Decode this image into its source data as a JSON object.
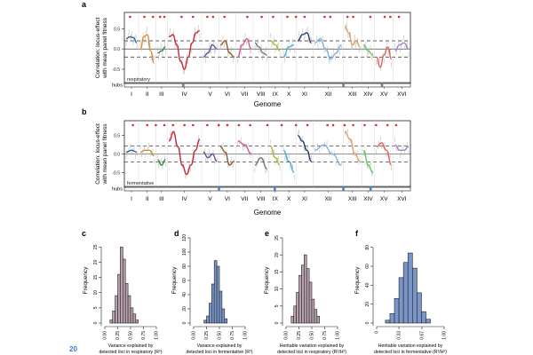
{
  "page_number": "20",
  "genome_panels": [
    {
      "letter": "a",
      "ylabel_lines": [
        "Correlation: locus-effect",
        "with mean panel fitness"
      ],
      "y_ticks": [
        "0.5",
        "0.0",
        "-0.5"
      ],
      "y_range": [
        -0.85,
        0.9
      ],
      "dashed_levels": [
        0.2,
        -0.2
      ],
      "condition": "respiratory",
      "hubs_label": "hubs",
      "xlabel": "Genome",
      "chromosomes": [
        "I",
        "II",
        "III",
        "IV",
        "V",
        "VI",
        "VII",
        "VIII",
        "IX",
        "X",
        "XI",
        "XII",
        "XIII",
        "XIV",
        "XV",
        "XVI"
      ],
      "chromosome_spans": [
        [
          0,
          0.05
        ],
        [
          0.05,
          0.11
        ],
        [
          0.11,
          0.15
        ],
        [
          0.15,
          0.27
        ],
        [
          0.27,
          0.33
        ],
        [
          0.33,
          0.39
        ],
        [
          0.39,
          0.45
        ],
        [
          0.45,
          0.505
        ],
        [
          0.505,
          0.55
        ],
        [
          0.55,
          0.6
        ],
        [
          0.6,
          0.66
        ],
        [
          0.66,
          0.765
        ],
        [
          0.765,
          0.83
        ],
        [
          0.83,
          0.875
        ],
        [
          0.875,
          0.94
        ],
        [
          0.94,
          1.0
        ]
      ],
      "series_colors": [
        "#2b5f9e",
        "#d98c2a",
        "#2e8b3e",
        "#c8282e",
        "#6a4aa0",
        "#8b5a2b",
        "#d4569a",
        "#777777",
        "#b5b52a",
        "#3fb5c8",
        "#1f3f66",
        "#7fb3e0",
        "#e0a060",
        "#5ac85a",
        "#e06060",
        "#a080c8"
      ],
      "profile": [
        [
          0.25,
          0.3,
          0.28,
          0.15
        ],
        [
          0.0,
          0.3,
          0.35,
          -0.05,
          -0.35
        ],
        [
          -0.1,
          -0.05,
          0.05
        ],
        [
          0.3,
          0.35,
          0.1,
          -0.3,
          -0.5,
          -0.2,
          0.15,
          0.4,
          0.45
        ],
        [
          -0.2,
          -0.1,
          0.1,
          0.0
        ],
        [
          0.1,
          0.2,
          -0.1,
          -0.2
        ],
        [
          -0.2,
          0.1,
          0.25,
          0.0
        ],
        [
          0.15,
          0.05,
          -0.1,
          -0.15
        ],
        [
          0.2,
          0.1,
          -0.05
        ],
        [
          -0.2,
          0.05,
          0.1
        ],
        [
          0.2,
          0.35,
          0.4,
          0.15
        ],
        [
          0.15,
          0.25,
          0.0,
          -0.25,
          -0.1,
          0.1
        ],
        [
          0.55,
          0.4,
          0.1,
          0.2,
          0.05
        ],
        [
          0.1,
          -0.05,
          -0.15
        ],
        [
          -0.2,
          -0.45,
          -0.15,
          0.05,
          -0.25
        ],
        [
          -0.05,
          0.1,
          0.15,
          0.0
        ]
      ],
      "qtl_marks": [
        0.02,
        0.07,
        0.1,
        0.125,
        0.14,
        0.2,
        0.24,
        0.29,
        0.31,
        0.35,
        0.43,
        0.48,
        0.52,
        0.57,
        0.6,
        0.63,
        0.7,
        0.72,
        0.78,
        0.8,
        0.86,
        0.91,
        0.93,
        0.96
      ],
      "hub_positions": [
        0.205,
        0.765,
        0.9
      ]
    },
    {
      "letter": "b",
      "ylabel_lines": [
        "Correlation: locus-effect",
        "with mean panel fitness"
      ],
      "y_ticks": [
        "0.5",
        "0.0",
        "-0.5"
      ],
      "y_range": [
        -0.9,
        0.9
      ],
      "dashed_levels": [
        0.22,
        -0.22
      ],
      "condition": "fermentative",
      "hubs_label": "hubs",
      "xlabel": "Genome",
      "chromosomes": [
        "I",
        "II",
        "III",
        "IV",
        "V",
        "VI",
        "VII",
        "VIII",
        "IX",
        "X",
        "XI",
        "XII",
        "XIII",
        "XIV",
        "XV",
        "XVI"
      ],
      "chromosome_spans": [
        [
          0,
          0.05
        ],
        [
          0.05,
          0.11
        ],
        [
          0.11,
          0.15
        ],
        [
          0.15,
          0.27
        ],
        [
          0.27,
          0.33
        ],
        [
          0.33,
          0.39
        ],
        [
          0.39,
          0.45
        ],
        [
          0.45,
          0.505
        ],
        [
          0.505,
          0.55
        ],
        [
          0.55,
          0.6
        ],
        [
          0.6,
          0.66
        ],
        [
          0.66,
          0.765
        ],
        [
          0.765,
          0.83
        ],
        [
          0.83,
          0.875
        ],
        [
          0.875,
          0.94
        ],
        [
          0.94,
          1.0
        ]
      ],
      "series_colors": [
        "#2b5f9e",
        "#d98c2a",
        "#2e8b3e",
        "#c8282e",
        "#6a4aa0",
        "#8b5a2b",
        "#d4569a",
        "#777777",
        "#b5b52a",
        "#3fb5c8",
        "#1f3f66",
        "#7fb3e0",
        "#e0a060",
        "#5ac85a",
        "#e06060",
        "#a080c8"
      ],
      "profile": [
        [
          0.05,
          0.1,
          0.05
        ],
        [
          0.05,
          0.1,
          0.1,
          -0.05
        ],
        [
          -0.15,
          -0.3,
          -0.15
        ],
        [
          0.35,
          0.6,
          0.2,
          -0.3,
          -0.55,
          -0.3,
          0.1,
          0.4
        ],
        [
          0.05,
          -0.1,
          0.0,
          -0.2
        ],
        [
          0.2,
          0.05,
          -0.3,
          -0.2
        ],
        [
          0.35,
          0.25,
          0.0
        ],
        [
          -0.3,
          -0.1,
          -0.4
        ],
        [
          0.2,
          -0.1,
          -0.3
        ],
        [
          0.1,
          -0.2,
          -0.5
        ],
        [
          0.5,
          0.35,
          0.1,
          -0.2
        ],
        [
          0.1,
          0.25,
          0.0,
          -0.3
        ],
        [
          0.6,
          0.4,
          0.0,
          -0.2
        ],
        [
          0.1,
          -0.3,
          -0.5
        ],
        [
          0.2,
          0.3,
          0.1,
          -0.3
        ],
        [
          0.25,
          0.1,
          0.1,
          0.2
        ]
      ],
      "qtl_marks": [
        0.03,
        0.08,
        0.11,
        0.14,
        0.17,
        0.21,
        0.24,
        0.29,
        0.33,
        0.36,
        0.4,
        0.44,
        0.5,
        0.55,
        0.6,
        0.64,
        0.71,
        0.73,
        0.77,
        0.8,
        0.84,
        0.88,
        0.92,
        0.95
      ],
      "hub_positions": [
        0.33,
        0.525,
        0.765,
        0.86
      ]
    }
  ],
  "histograms": [
    {
      "letter": "c",
      "fill": "#b8a0ac",
      "xlabel_lines": [
        "Variance explained by",
        "detected loci in respiratory (R²)"
      ],
      "ylabel": "Frequency",
      "x_ticks": [
        "0.00",
        "0.25",
        "0.50",
        "0.75",
        "1.00"
      ],
      "x_range": [
        0,
        1
      ],
      "y_ticks": [
        "0",
        "5",
        "10",
        "15",
        "20",
        "25"
      ],
      "y_range": [
        0,
        28
      ],
      "bin_width": 0.05,
      "bins_start": 0.1,
      "counts": [
        1,
        4,
        9,
        16,
        25,
        21,
        13,
        9,
        5,
        3,
        1
      ]
    },
    {
      "letter": "d",
      "fill": "#7a96c8",
      "xlabel_lines": [
        "Variance explained by",
        "detected loci in fermentative (R²)"
      ],
      "ylabel": "Frequency",
      "x_ticks": [
        "0.00",
        "0.25",
        "0.50",
        "0.75",
        "1.00"
      ],
      "x_range": [
        0,
        1
      ],
      "y_ticks": [
        "0",
        "20",
        "40",
        "60",
        "80",
        "100",
        "120"
      ],
      "y_range": [
        0,
        120
      ],
      "bin_width": 0.05,
      "bins_start": 0.2,
      "counts": [
        4,
        10,
        28,
        55,
        88,
        80,
        45,
        20,
        6
      ]
    },
    {
      "letter": "e",
      "fill": "#b8a0ac",
      "xlabel_lines": [
        "Heritable variation explained by",
        "detected loci in respiratory (R²/H²)"
      ],
      "ylabel": "Frequency",
      "x_ticks": [
        "0.00",
        "0.25",
        "0.50",
        "0.75",
        "1.00"
      ],
      "x_range": [
        0,
        1
      ],
      "y_ticks": [
        "0",
        "5",
        "10",
        "15",
        "20",
        "25"
      ],
      "y_range": [
        0,
        25
      ],
      "bin_width": 0.05,
      "bins_start": 0.1,
      "counts": [
        2,
        5,
        9,
        14,
        17,
        20,
        16,
        12,
        7,
        4,
        2
      ]
    },
    {
      "letter": "f",
      "fill": "#7a96c8",
      "xlabel_lines": [
        "Heritable variation explained by",
        "detected loci in fermentative (R²/H²)"
      ],
      "ylabel": "Frequency",
      "x_ticks": [
        "0",
        "0.33",
        "0.67",
        "1.00"
      ],
      "x_range": [
        0,
        1
      ],
      "y_ticks": [
        "0",
        "20",
        "40",
        "60",
        "80"
      ],
      "y_range": [
        0,
        90
      ],
      "bin_width": 0.0667,
      "bins_start": 0.13,
      "counts": [
        3,
        10,
        26,
        48,
        64,
        74,
        58,
        32,
        12,
        4
      ]
    }
  ]
}
